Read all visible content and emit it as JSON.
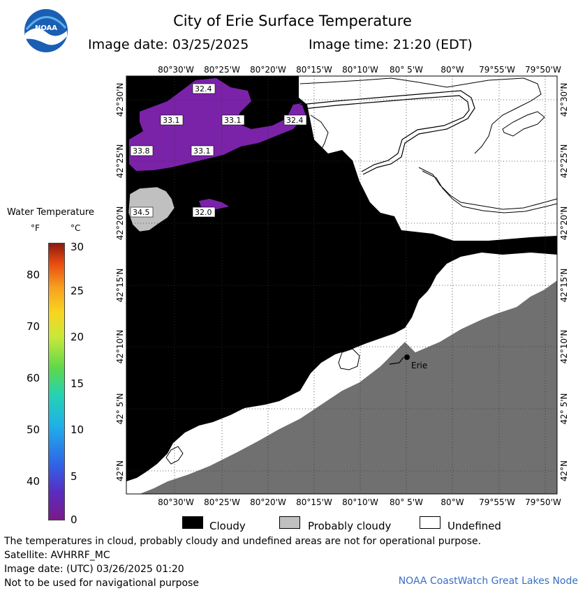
{
  "title": "City of Erie Surface Temperature",
  "image_date_label": "Image date: 03/25/2025",
  "image_time_label": "Image time: 21:20 (EDT)",
  "logo_text": "NOAA",
  "legend": {
    "title": "Water Temperature",
    "unit_f": "°F",
    "unit_c": "°C",
    "f_ticks": [
      "80",
      "70",
      "60",
      "50",
      "40"
    ],
    "c_ticks": [
      "30",
      "25",
      "20",
      "15",
      "10",
      "5",
      "0"
    ]
  },
  "map": {
    "lon_labels": [
      "80°30'W",
      "80°25'W",
      "80°20'W",
      "80°15'W",
      "80°10'W",
      "80° 5'W",
      "80°W",
      "79°55'W",
      "79°50'W"
    ],
    "lat_labels": [
      "42°30'N",
      "42°25'N",
      "42°20'N",
      "42°15'N",
      "42°10'N",
      "42° 5'N",
      "42°N"
    ],
    "city": "Erie",
    "temp_labels": [
      "32.4",
      "33.1",
      "33.1",
      "32.4",
      "33.8",
      "33.1",
      "34.5",
      "32.0"
    ]
  },
  "key": {
    "cloudy": "Cloudy",
    "probably_cloudy": "Probably cloudy",
    "undefined": "Undefined"
  },
  "notes": {
    "line1": "The temperatures in cloud, probably cloudy and undefined areas are not for operational purpose.",
    "line2": "Satellite: AVHRRF_MC",
    "line3": "Image date: (UTC) 03/26/2025  01:20",
    "line4": "Not to be used for navigational purpose"
  },
  "credit": "NOAA CoastWatch Great Lakes Node",
  "colors": {
    "cloudy": "#000000",
    "probably_cloudy": "#c0c0c0",
    "land": "#707070",
    "undefined": "#ffffff",
    "cold_water": "#7a22a8"
  }
}
